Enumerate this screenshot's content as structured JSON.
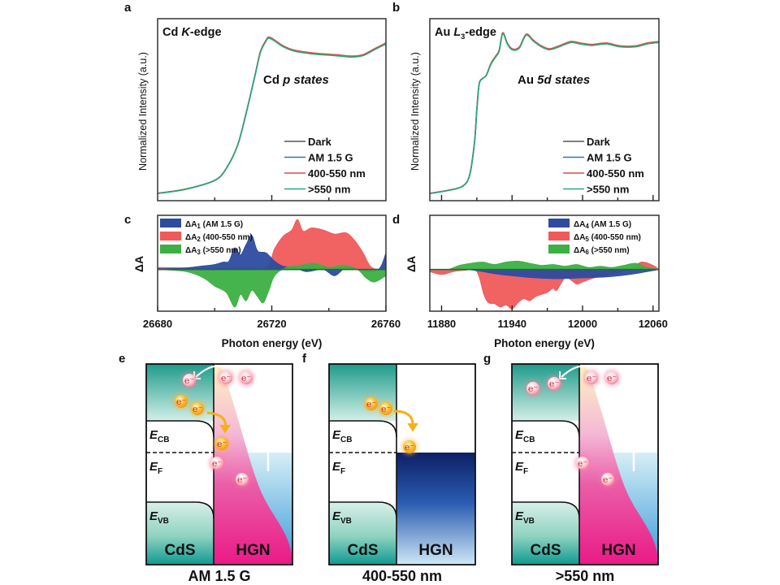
{
  "panel_letters": [
    "a",
    "b",
    "c",
    "d",
    "e",
    "f",
    "g"
  ],
  "chart_data": [
    {
      "id": "a",
      "type": "line",
      "title": "Cd K-edge",
      "title_parts": {
        "element": "Cd ",
        "italic": "K",
        "suffix": "-edge"
      },
      "annotation": {
        "prefix": "Cd ",
        "italic": "p states"
      },
      "ylabel": "Normalized Intensity (a.u.)",
      "xlabel": "",
      "xlim": [
        26680,
        26760
      ],
      "ylim": [
        0,
        1.25
      ],
      "x_ticks": [
        26700,
        26720,
        26740
      ],
      "tick_labels_shown": false,
      "legend_position": "bottom-right",
      "series": [
        {
          "name": "Dark",
          "color": "#555555"
        },
        {
          "name": "AM 1.5 G",
          "color": "#3a6fb0"
        },
        {
          "name": "400-550 nm",
          "color": "#e0474c"
        },
        {
          "name": ">550 nm",
          "color": "#2aa876"
        }
      ],
      "x": [
        26680,
        26690,
        26700,
        26704,
        26708,
        26711,
        26714,
        26716,
        26718,
        26719,
        26721,
        26724,
        26728,
        26735,
        26742,
        26748,
        26752,
        26756,
        26760
      ],
      "y": [
        0.05,
        0.08,
        0.14,
        0.22,
        0.38,
        0.6,
        0.85,
        1.02,
        1.1,
        1.12,
        1.1,
        1.06,
        1.03,
        1.01,
        1.0,
        0.99,
        1.0,
        1.04,
        1.08
      ]
    },
    {
      "id": "b",
      "type": "line",
      "title": "Au L3-edge",
      "title_parts": {
        "element": "Au ",
        "italic": "L",
        "sub": "3",
        "suffix": "-edge"
      },
      "annotation": {
        "prefix": "Au ",
        "italic": "5d states"
      },
      "ylabel": "Normalized Intensity (a.u.)",
      "xlabel": "",
      "xlim": [
        11870,
        12065
      ],
      "ylim": [
        0,
        1.25
      ],
      "x_ticks": [
        11880,
        11910,
        11940,
        11970,
        12000,
        12030,
        12060
      ],
      "tick_labels_shown": false,
      "legend_position": "bottom-right",
      "series": [
        {
          "name": "Dark",
          "color": "#555555"
        },
        {
          "name": "AM 1.5 G",
          "color": "#3a6fb0"
        },
        {
          "name": "400-550 nm",
          "color": "#e0474c"
        },
        {
          "name": ">550 nm",
          "color": "#2aa876"
        }
      ],
      "x": [
        11870,
        11885,
        11898,
        11904,
        11908,
        11910,
        11912,
        11915,
        11918,
        11922,
        11926,
        11929,
        11932,
        11936,
        11940,
        11946,
        11952,
        11958,
        11965,
        11972,
        11980,
        11990,
        11998,
        12008,
        12020,
        12032,
        12045,
        12055,
        12065
      ],
      "y": [
        0.05,
        0.07,
        0.1,
        0.18,
        0.4,
        0.62,
        0.8,
        0.84,
        0.86,
        0.94,
        0.99,
        1.03,
        1.15,
        1.08,
        1.04,
        1.05,
        1.14,
        1.1,
        1.06,
        1.04,
        1.06,
        1.09,
        1.08,
        1.07,
        1.08,
        1.06,
        1.06,
        1.08,
        1.09
      ]
    },
    {
      "id": "c",
      "type": "area",
      "title": "",
      "ylabel": "ΔA",
      "xlabel": "Photon energy (eV)",
      "xlim": [
        26680,
        26760
      ],
      "ylim": [
        -1.0,
        1.3
      ],
      "x_ticks": [
        26680,
        26700,
        26720,
        26740,
        26760
      ],
      "x_tick_labels": [
        "26680",
        "",
        "26720",
        "",
        "26760"
      ],
      "legend_position": "top-left",
      "series": [
        {
          "name": "ΔA",
          "sub": "1",
          "label_suffix": " (AM 1.5 G)",
          "color": "#2d4ba0",
          "x": [
            26680,
            26688,
            26695,
            26700,
            26703,
            26705,
            26707,
            26709,
            26711,
            26713,
            26715,
            26718,
            26721,
            26724,
            26728,
            26732,
            26738,
            26742,
            26746,
            26750,
            26755,
            26758,
            26760
          ],
          "y": [
            0.02,
            0.03,
            0.08,
            0.12,
            0.18,
            0.2,
            0.52,
            0.35,
            0.6,
            0.82,
            0.45,
            0.4,
            0.2,
            0.08,
            0.05,
            -0.05,
            0.0,
            -0.15,
            0.05,
            0.0,
            -0.05,
            0.05,
            0.4
          ]
        },
        {
          "name": "ΔA",
          "sub": "2",
          "label_suffix": " (400-550 nm)",
          "color": "#f05a5a",
          "x": [
            26680,
            26690,
            26700,
            26710,
            26718,
            26721,
            26724,
            26727,
            26729,
            26731,
            26734,
            26738,
            26742,
            26746,
            26749,
            26752,
            26755,
            26760
          ],
          "y": [
            0.05,
            0.04,
            0.02,
            0.05,
            0.05,
            0.5,
            0.8,
            0.95,
            1.2,
            0.92,
            1.0,
            0.95,
            0.85,
            0.88,
            0.7,
            0.4,
            0.05,
            0.0
          ]
        },
        {
          "name": "ΔA",
          "sub": "3",
          "label_suffix": " (>550 nm)",
          "color": "#3cb043",
          "x": [
            26680,
            26690,
            26696,
            26700,
            26704,
            26707,
            26709,
            26711,
            26713,
            26715,
            26717,
            26719,
            26721,
            26725,
            26730,
            26735,
            26740,
            26745,
            26750,
            26753,
            26756,
            26760
          ],
          "y": [
            0.0,
            -0.05,
            -0.2,
            -0.4,
            -0.55,
            -0.9,
            -0.6,
            -0.75,
            -0.5,
            -0.65,
            -0.8,
            -0.5,
            -0.15,
            0.05,
            0.1,
            0.15,
            0.05,
            0.1,
            0.0,
            -0.2,
            -0.3,
            -0.15
          ]
        }
      ]
    },
    {
      "id": "d",
      "type": "area",
      "title": "",
      "ylabel": "ΔA",
      "xlabel": "Photon energy (eV)",
      "xlim": [
        11870,
        12065
      ],
      "ylim": [
        -1.0,
        1.3
      ],
      "x_ticks": [
        11880,
        11910,
        11940,
        11970,
        12000,
        12030,
        12060
      ],
      "x_tick_labels": [
        "11880",
        "",
        "11940",
        "",
        "12000",
        "",
        "12060"
      ],
      "legend_position": "top-right",
      "series": [
        {
          "name": "ΔA",
          "sub": "4",
          "label_suffix": " (AM 1.5 G)",
          "color": "#2d4ba0",
          "x": [
            11870,
            11900,
            11915,
            11925,
            11940,
            11960,
            11980,
            12000,
            12020,
            12040,
            12055,
            12065
          ],
          "y": [
            0.0,
            0.0,
            -0.05,
            -0.1,
            -0.15,
            -0.2,
            -0.22,
            -0.2,
            -0.18,
            -0.12,
            -0.05,
            0.0
          ]
        },
        {
          "name": "ΔA",
          "sub": "5",
          "label_suffix": " (400-550 nm)",
          "color": "#f05a5a",
          "x": [
            11870,
            11880,
            11890,
            11900,
            11910,
            11916,
            11920,
            11925,
            11930,
            11935,
            11940,
            11945,
            11950,
            11955,
            11960,
            11965,
            11970,
            11975,
            11978,
            11985,
            11990,
            11995,
            12000,
            12010,
            12020,
            12040,
            12050,
            12060,
            12065
          ],
          "y": [
            -0.05,
            -0.12,
            -0.05,
            -0.02,
            -0.05,
            -0.6,
            -0.8,
            -0.82,
            -0.9,
            -0.85,
            -0.95,
            -0.8,
            -0.7,
            -0.75,
            -0.65,
            -0.6,
            -0.55,
            -0.45,
            -0.5,
            -0.2,
            -0.25,
            -0.35,
            -0.3,
            -0.2,
            -0.15,
            0.0,
            0.18,
            0.1,
            0.0
          ]
        },
        {
          "name": "ΔA",
          "sub": "6",
          "label_suffix": " (>550 nm)",
          "color": "#3cb043",
          "x": [
            11870,
            11885,
            11895,
            11905,
            11915,
            11925,
            11935,
            11945,
            11955,
            11965,
            11975,
            11985,
            11995,
            12005,
            12015,
            12025,
            12035,
            12045,
            12055,
            12065
          ],
          "y": [
            0.0,
            0.0,
            0.1,
            0.15,
            0.18,
            0.12,
            0.18,
            0.2,
            0.15,
            0.1,
            0.12,
            0.08,
            0.12,
            0.05,
            0.08,
            0.05,
            0.1,
            0.15,
            0.05,
            0.0
          ]
        }
      ]
    }
  ],
  "diagrams": [
    {
      "id": "e",
      "caption": "AM 1.5 G",
      "left_label": "CdS",
      "right_label": "HGN",
      "levels": {
        "cb": "E",
        "cb_sub": "CB",
        "f": "E",
        "f_sub": "F",
        "vb": "E",
        "vb_sub": "VB"
      },
      "electron": "e⁻",
      "hgn_fill": "plasmon-pink",
      "cds_label_color": "#0d3d36",
      "hgn_label_color": "#6a3aa8"
    },
    {
      "id": "f",
      "caption": "400-550 nm",
      "left_label": "CdS",
      "right_label": "HGN",
      "levels": {
        "cb": "E",
        "cb_sub": "CB",
        "f": "E",
        "f_sub": "F",
        "vb": "E",
        "vb_sub": "VB"
      },
      "electron": "e⁻",
      "hgn_fill": "dark-blue",
      "cds_label_color": "#0d3d36",
      "hgn_label_color": "#1e3f8a"
    },
    {
      "id": "g",
      "caption": ">550 nm",
      "left_label": "CdS",
      "right_label": "HGN",
      "levels": {
        "cb": "E",
        "cb_sub": "CB",
        "f": "E",
        "f_sub": "F",
        "vb": "E",
        "vb_sub": "VB"
      },
      "electron": "e⁻",
      "hgn_fill": "plasmon-pink",
      "cds_label_color": "#e8f8f6",
      "hgn_label_color": "#6a3aa8"
    }
  ]
}
